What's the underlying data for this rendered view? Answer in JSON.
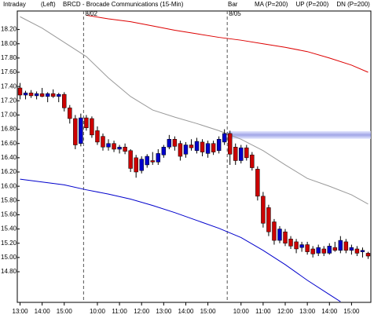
{
  "chart_data": {
    "type": "candlestick",
    "header": [
      "Intraday",
      "(Left)",
      "BRCD - Brocade Communications (15-Min)",
      "Bar"
    ],
    "up_color": "#0000cc",
    "down_color": "#cc0000",
    "open": [
      17.38,
      17.28,
      17.31,
      17.27,
      17.3,
      17.26,
      17.3,
      17.26,
      17.29,
      17.1,
      16.95,
      16.6,
      16.96,
      16.95,
      16.78,
      16.7,
      16.55,
      16.6,
      16.52,
      16.55,
      16.5,
      16.4,
      16.22,
      16.3,
      16.36,
      16.34,
      16.44,
      16.55,
      16.66,
      16.6,
      16.45,
      16.58,
      16.5,
      16.62,
      16.46,
      16.6,
      16.5,
      16.62,
      16.74,
      16.55,
      16.36,
      16.54,
      16.44,
      16.24,
      15.86,
      15.7,
      15.5,
      15.24,
      15.36,
      15.26,
      15.22,
      15.14,
      15.18,
      15.12,
      15.06,
      15.12,
      15.06,
      15.14,
      15.1,
      15.22,
      15.1,
      15.12,
      15.08,
      15.06
    ],
    "high": [
      17.45,
      17.34,
      17.35,
      17.33,
      17.38,
      17.32,
      17.36,
      17.31,
      17.32,
      17.14,
      17.0,
      17.02,
      17.0,
      16.98,
      16.84,
      16.74,
      16.66,
      16.64,
      16.58,
      16.6,
      16.52,
      16.44,
      16.42,
      16.45,
      16.48,
      16.52,
      16.58,
      16.72,
      16.7,
      16.64,
      16.62,
      16.66,
      16.68,
      16.66,
      16.64,
      16.64,
      16.7,
      16.8,
      16.78,
      16.6,
      16.58,
      16.58,
      16.48,
      16.28,
      15.92,
      15.74,
      15.54,
      15.44,
      15.4,
      15.3,
      15.26,
      15.22,
      15.22,
      15.16,
      15.18,
      15.16,
      15.2,
      15.22,
      15.3,
      15.26,
      15.18,
      15.16,
      15.14,
      15.08
    ],
    "low": [
      17.22,
      17.22,
      17.24,
      17.22,
      17.25,
      17.18,
      17.24,
      17.18,
      17.05,
      16.88,
      16.52,
      16.56,
      16.78,
      16.68,
      16.58,
      16.5,
      16.5,
      16.48,
      16.46,
      16.45,
      16.2,
      16.12,
      16.18,
      16.26,
      16.3,
      16.3,
      16.4,
      16.52,
      16.5,
      16.36,
      16.4,
      16.5,
      16.46,
      16.42,
      16.4,
      16.44,
      16.46,
      16.58,
      16.3,
      16.3,
      16.32,
      16.36,
      16.22,
      15.8,
      15.42,
      15.3,
      15.18,
      15.2,
      15.16,
      15.12,
      15.06,
      15.08,
      15.04,
      15.0,
      15.02,
      15.02,
      15.04,
      15.08,
      15.06,
      15.06,
      15.04,
      15.02,
      15.0,
      14.98
    ],
    "close": [
      17.28,
      17.31,
      17.27,
      17.3,
      17.26,
      17.3,
      17.26,
      17.29,
      17.1,
      16.95,
      16.58,
      16.96,
      16.82,
      16.72,
      16.62,
      16.55,
      16.6,
      16.52,
      16.55,
      16.49,
      16.25,
      16.2,
      16.38,
      16.42,
      16.34,
      16.46,
      16.55,
      16.66,
      16.56,
      16.42,
      16.58,
      16.54,
      16.63,
      16.48,
      16.6,
      16.48,
      16.66,
      16.74,
      16.45,
      16.36,
      16.54,
      16.4,
      16.26,
      15.86,
      15.48,
      15.36,
      15.24,
      15.4,
      15.2,
      15.16,
      15.12,
      15.18,
      15.08,
      15.05,
      15.14,
      15.06,
      15.16,
      15.1,
      15.24,
      15.1,
      15.14,
      15.06,
      15.1,
      15.02
    ],
    "series": [
      {
        "name": "MA (P=200)",
        "label_color": "#dd0000",
        "color": "#999999",
        "x": [
          0,
          4,
          8,
          12,
          16,
          20,
          24,
          28,
          32,
          36,
          40,
          44,
          48,
          52,
          56,
          60,
          63
        ],
        "values": [
          18.38,
          18.22,
          18.02,
          17.82,
          17.52,
          17.26,
          17.07,
          16.97,
          16.88,
          16.78,
          16.66,
          16.5,
          16.3,
          16.11,
          16.0,
          15.88,
          15.75
        ]
      },
      {
        "name": "UP (P=200)",
        "label_color": "#00aa00",
        "color": "#dd0000",
        "x": [
          12,
          16,
          20,
          24,
          28,
          32,
          36,
          40,
          44,
          48,
          52,
          56,
          60,
          63
        ],
        "values": [
          18.4,
          18.35,
          18.31,
          18.25,
          18.19,
          18.14,
          18.09,
          18.05,
          18.0,
          17.95,
          17.89,
          17.8,
          17.7,
          17.6
        ]
      },
      {
        "name": "DN (P=200)",
        "label_color": "#0000dd",
        "color": "#0000cc",
        "x": [
          0,
          4,
          8,
          12,
          16,
          20,
          24,
          28,
          32,
          36,
          40,
          44,
          48,
          52,
          56,
          58
        ],
        "values": [
          16.1,
          16.06,
          16.02,
          15.95,
          15.89,
          15.82,
          15.73,
          15.63,
          15.52,
          15.41,
          15.28,
          15.1,
          14.9,
          14.68,
          14.48,
          14.38
        ]
      }
    ],
    "day_separators": [
      {
        "value": 11.5,
        "label": "8/02"
      },
      {
        "value": 37.5,
        "label": "8/05"
      }
    ],
    "highlight": {
      "x": 37.5,
      "y": 16.72
    },
    "xlim": [
      -0.5,
      63.5
    ],
    "xticks": [
      {
        "value": 0,
        "label": "13:00"
      },
      {
        "value": 4,
        "label": "14:00"
      },
      {
        "value": 8,
        "label": "15:00"
      },
      {
        "value": 14,
        "label": "10:00"
      },
      {
        "value": 18,
        "label": "11:00"
      },
      {
        "value": 22,
        "label": "12:00"
      },
      {
        "value": 26,
        "label": "13:00"
      },
      {
        "value": 30,
        "label": "14:00"
      },
      {
        "value": 34,
        "label": "15:00"
      },
      {
        "value": 40,
        "label": "10:00"
      },
      {
        "value": 44,
        "label": "11:00"
      },
      {
        "value": 48,
        "label": "12:00"
      },
      {
        "value": 52,
        "label": "13:00"
      },
      {
        "value": 56,
        "label": "14:00"
      },
      {
        "value": 60,
        "label": "15:00"
      }
    ],
    "ylim": [
      14.37,
      18.46
    ],
    "yticks": [
      {
        "value": 14.8,
        "label": "14.80"
      },
      {
        "value": 15.0,
        "label": "15.00"
      },
      {
        "value": 15.2,
        "label": "15.20"
      },
      {
        "value": 15.4,
        "label": "15.40"
      },
      {
        "value": 15.6,
        "label": "15.60"
      },
      {
        "value": 15.8,
        "label": "15.80"
      },
      {
        "value": 16.0,
        "label": "16.00"
      },
      {
        "value": 16.2,
        "label": "16.20"
      },
      {
        "value": 16.4,
        "label": "16.40"
      },
      {
        "value": 16.6,
        "label": "16.60"
      },
      {
        "value": 16.8,
        "label": "16.80"
      },
      {
        "value": 17.0,
        "label": "17.00"
      },
      {
        "value": 17.2,
        "label": "17.20"
      },
      {
        "value": 17.4,
        "label": "17.40"
      },
      {
        "value": 17.6,
        "label": "17.60"
      },
      {
        "value": 17.8,
        "label": "17.80"
      },
      {
        "value": 18.0,
        "label": "18.00"
      },
      {
        "value": 18.2,
        "label": "18.20"
      }
    ]
  }
}
